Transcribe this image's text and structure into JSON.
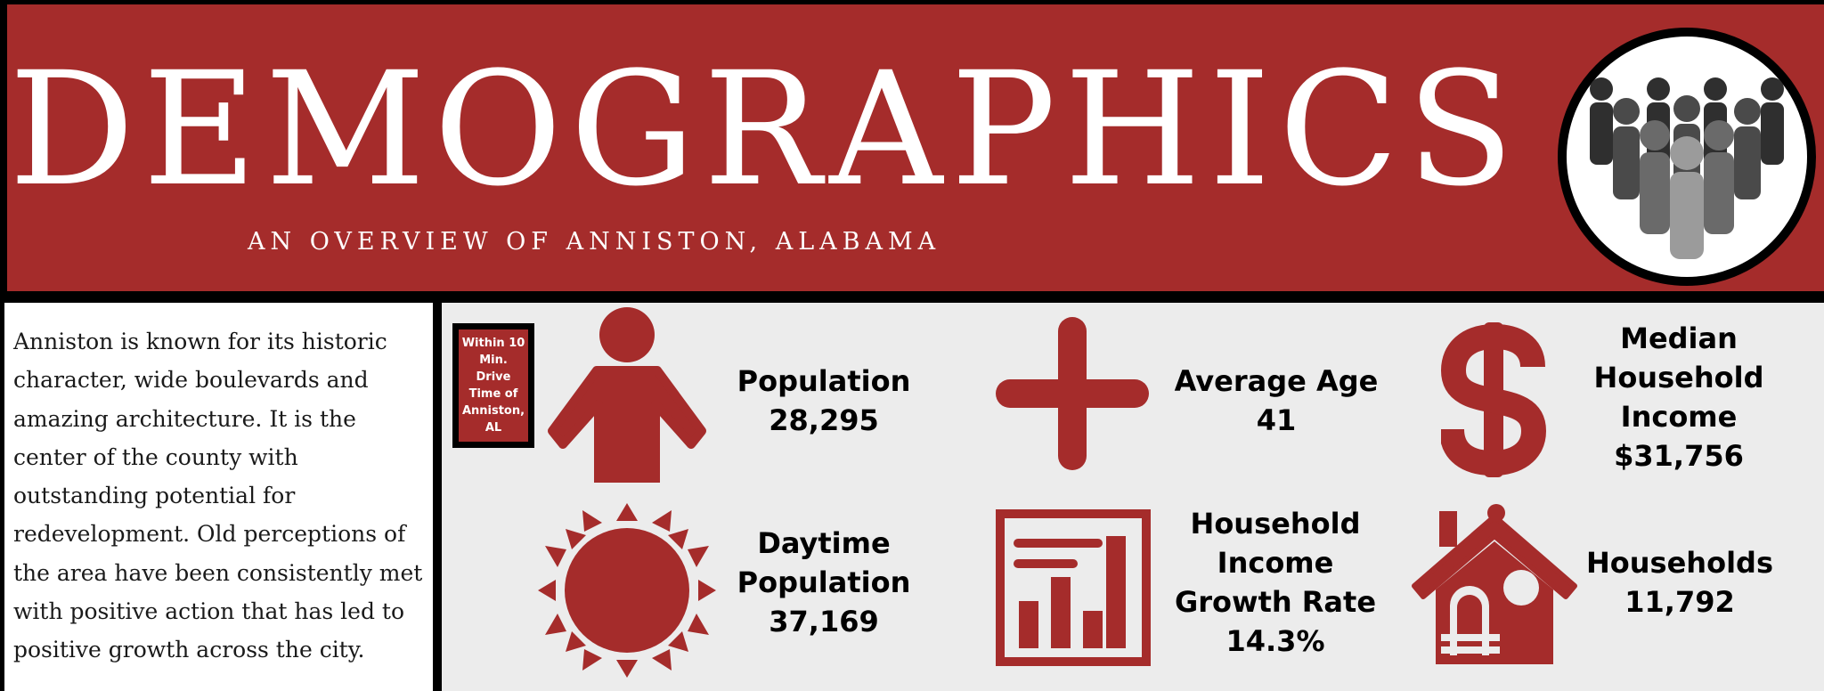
{
  "header": {
    "title": "DEMOGRAPHICS",
    "subtitle": "AN OVERVIEW OF ANNISTON, ALABAMA"
  },
  "intro": {
    "text": "Anniston is known for its historic character, wide boulevards and amazing architecture. It is the center of the county with outstanding potential for redevelopment. Old perceptions of the area have been consistently met with positive action that has led to positive growth across the city."
  },
  "badge": {
    "text": "Within 10 Min. Drive Time of Anniston, AL"
  },
  "colors": {
    "accent": "#a52c2b",
    "panel": "#ececec"
  },
  "stats": [
    {
      "icon": "person-icon",
      "label": "Population",
      "value": "28,295"
    },
    {
      "icon": "plus-icon",
      "label": "Average Age",
      "value": "41"
    },
    {
      "icon": "dollar-icon",
      "label_lines": [
        "Median",
        "Household",
        "Income"
      ],
      "value": "$31,756"
    },
    {
      "icon": "sun-icon",
      "label_lines": [
        "Daytime",
        "Population"
      ],
      "value": "37,169"
    },
    {
      "icon": "bar-chart-icon",
      "label_lines": [
        "Household",
        "Income",
        "Growth Rate"
      ],
      "value": "14.3%"
    },
    {
      "icon": "house-icon",
      "label": "Households",
      "value": "11,792"
    }
  ]
}
